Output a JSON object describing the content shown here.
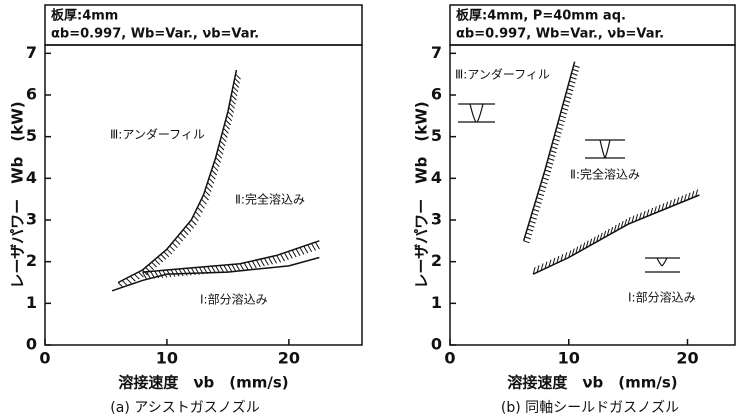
{
  "chart_data": [
    {
      "type": "line",
      "header": [
        "板厚:4mm",
        "αb=0.997, Wb=Var., νb=Var."
      ],
      "x_label": "溶接速度　νb　(mm/s)",
      "y_label": "レーザパワー　Wb　(kW)",
      "caption": "(a) アシストガスノズル",
      "xlim": [
        0,
        26
      ],
      "xticks": [
        0,
        10,
        20
      ],
      "ylim": [
        0,
        7.2
      ],
      "yticks": [
        0,
        1,
        2,
        3,
        4,
        5,
        6,
        7
      ],
      "series": [
        {
          "color": "#111",
          "x": [
            6,
            8,
            10,
            12,
            13,
            14,
            15,
            15.7
          ],
          "values": [
            1.5,
            1.8,
            2.3,
            3.0,
            3.6,
            4.5,
            5.6,
            6.6
          ]
        },
        {
          "color": "#111",
          "x": [
            8,
            12,
            16,
            19,
            22.5
          ],
          "values": [
            1.75,
            1.85,
            1.95,
            2.15,
            2.5
          ]
        },
        {
          "color": "#111",
          "x": [
            5.5,
            8,
            10,
            15,
            20,
            22.5
          ],
          "values": [
            1.3,
            1.55,
            1.7,
            1.75,
            1.9,
            2.1
          ]
        }
      ],
      "annotations": [
        "Ⅲ:アンダーフィル",
        "Ⅱ:完全溶込み",
        "Ⅰ:部分溶込み"
      ]
    },
    {
      "type": "line",
      "header": [
        "板厚:4mm, P=40mm aq.",
        "αb=0.997, Wb=Var., νb=Var."
      ],
      "x_label": "溶接速度　νb　(mm/s)",
      "y_label": "レーザパワー　Wb　(kW)",
      "caption": "(b) 同軸シールドガスノズル",
      "xlim": [
        0,
        24
      ],
      "xticks": [
        0,
        10,
        20
      ],
      "ylim": [
        0,
        7.2
      ],
      "yticks": [
        0,
        1,
        2,
        3,
        4,
        5,
        6,
        7
      ],
      "series": [
        {
          "color": "#111",
          "x": [
            6.2,
            8,
            10.5
          ],
          "values": [
            2.5,
            4.2,
            6.8
          ]
        },
        {
          "color": "#111",
          "x": [
            7,
            10,
            15,
            21
          ],
          "values": [
            1.7,
            2.1,
            2.9,
            3.6
          ]
        }
      ],
      "annotations": [
        "Ⅲ:アンダーフィル",
        "Ⅱ:完全溶込み",
        "Ⅰ:部分溶込み"
      ]
    }
  ]
}
